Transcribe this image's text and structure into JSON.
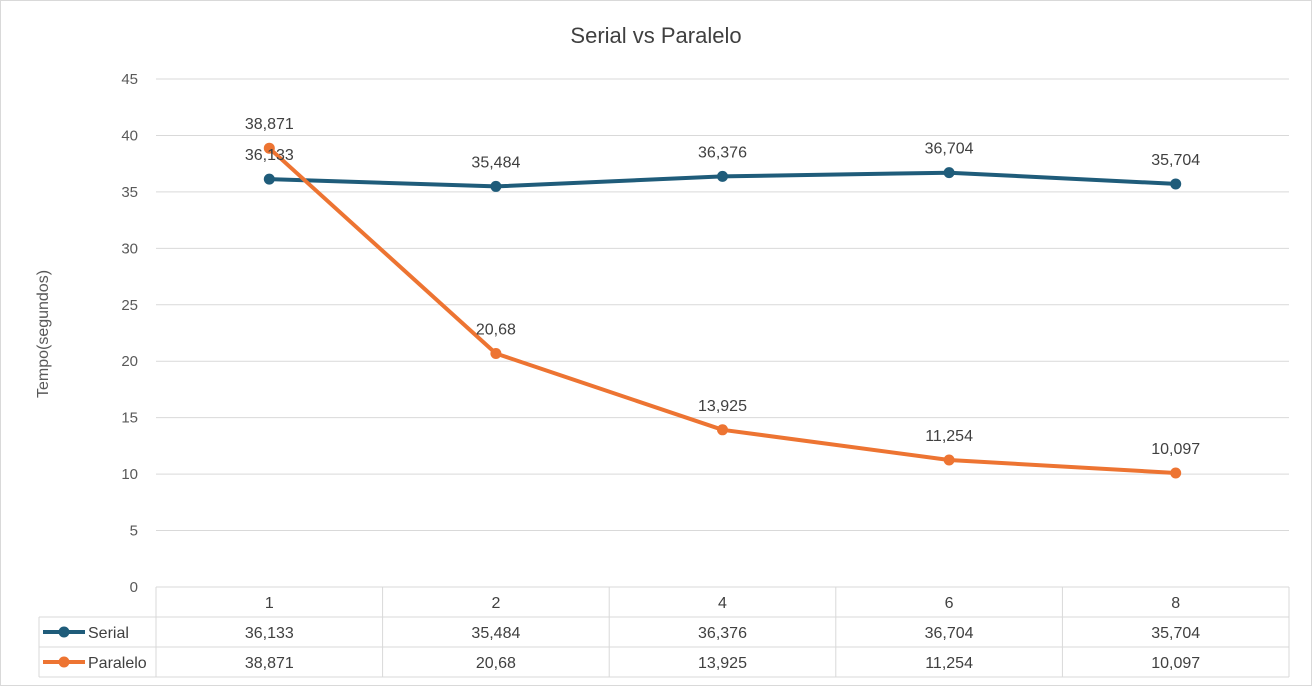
{
  "chart_data": {
    "type": "line",
    "title": "Serial vs Paralelo",
    "xlabel": "",
    "ylabel": "Tempo(segundos)",
    "categories": [
      "1",
      "2",
      "4",
      "6",
      "8"
    ],
    "ylim": [
      0,
      45
    ],
    "yticks": [
      0,
      5,
      10,
      15,
      20,
      25,
      30,
      35,
      40,
      45
    ],
    "grid": true,
    "legend": "data-table",
    "series": [
      {
        "name": "Serial",
        "color": "#1f5c7a",
        "values": [
          36.133,
          35.484,
          36.376,
          36.704,
          35.704
        ],
        "labels": [
          "36,133",
          "35,484",
          "36,376",
          "36,704",
          "35,704"
        ]
      },
      {
        "name": "Paralelo",
        "color": "#ed7432",
        "values": [
          38.871,
          20.68,
          13.925,
          11.254,
          10.097
        ],
        "labels": [
          "38,871",
          "20,68",
          "13,925",
          "11,254",
          "10,097"
        ]
      }
    ]
  }
}
